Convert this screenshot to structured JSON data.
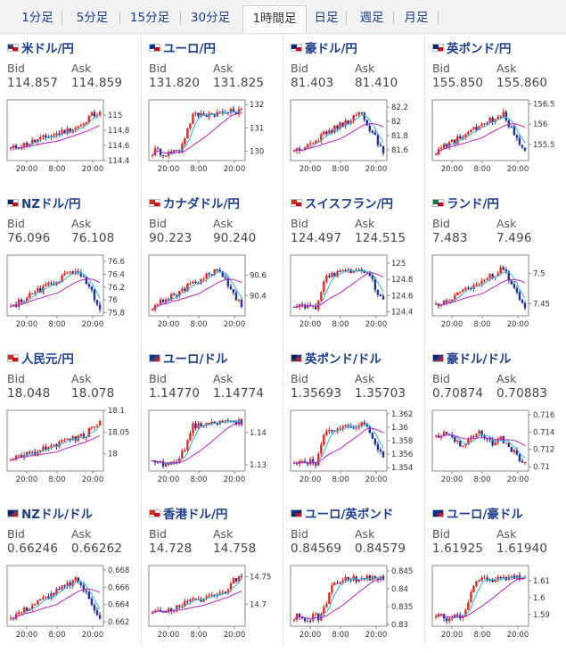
{
  "tabs": [
    {
      "label": "1分足",
      "active": false
    },
    {
      "label": "5分足",
      "active": false
    },
    {
      "label": "15分足",
      "active": false
    },
    {
      "label": "30分足",
      "active": false
    },
    {
      "label": "1時間足",
      "active": true
    },
    {
      "label": "日足",
      "active": false
    },
    {
      "label": "週足",
      "active": false
    },
    {
      "label": "月足",
      "active": false
    }
  ],
  "labels": {
    "bid": "Bid",
    "ask": "Ask"
  },
  "colors": {
    "up": "#e8261e",
    "down": "#1e2e9c",
    "ma_short": "#2bb8d6",
    "ma_long": "#c320c3",
    "link": "#1a3d8f"
  },
  "x_ticks": [
    "20:00",
    "8:00",
    "20:00"
  ],
  "cards": [
    {
      "name": "米ドル/円",
      "flag": "us-jp",
      "bid": "114.857",
      "ask": "114.859",
      "ymin": 114.4,
      "ymax": 115.2,
      "ticks": [
        "115",
        "114.8",
        "114.6",
        "114.4"
      ],
      "tickv": [
        115,
        114.8,
        114.6,
        114.4
      ],
      "trend": "up-late"
    },
    {
      "name": "ユーロ/円",
      "flag": "eu-jp",
      "bid": "131.820",
      "ask": "131.825",
      "ymin": 129.6,
      "ymax": 132.2,
      "ticks": [
        "132",
        "131",
        "130"
      ],
      "tickv": [
        132,
        131,
        130
      ],
      "trend": "jump"
    },
    {
      "name": "豪ドル/円",
      "flag": "au-jp",
      "bid": "81.403",
      "ask": "81.410",
      "ymin": 81.45,
      "ymax": 82.3,
      "ticks": [
        "82.2",
        "82",
        "81.8",
        "81.6"
      ],
      "tickv": [
        82.2,
        82,
        81.8,
        81.6
      ],
      "trend": "up-drop"
    },
    {
      "name": "英ポンド/円",
      "flag": "gb-jp",
      "bid": "155.850",
      "ask": "155.860",
      "ymin": 155.1,
      "ymax": 156.6,
      "ticks": [
        "156.5",
        "156",
        "155.5"
      ],
      "tickv": [
        156.5,
        156,
        155.5
      ],
      "trend": "up-drop"
    },
    {
      "name": "NZドル/円",
      "flag": "nz-jp",
      "bid": "76.096",
      "ask": "76.108",
      "ymin": 75.75,
      "ymax": 76.7,
      "ticks": [
        "76.6",
        "76.4",
        "76.2",
        "76",
        "75.8"
      ],
      "tickv": [
        76.6,
        76.4,
        76.2,
        76,
        75.8
      ],
      "trend": "up-drop"
    },
    {
      "name": "カナダドル/円",
      "flag": "ca-jp",
      "bid": "90.223",
      "ask": "90.240",
      "ymin": 90.2,
      "ymax": 90.8,
      "ticks": [
        "90.6",
        "90.4"
      ],
      "tickv": [
        90.6,
        90.4
      ],
      "trend": "up-drop"
    },
    {
      "name": "スイスフラン/円",
      "flag": "ch-jp",
      "bid": "124.497",
      "ask": "124.515",
      "ymin": 124.35,
      "ymax": 125.1,
      "ticks": [
        "125",
        "124.8",
        "124.6",
        "124.4"
      ],
      "tickv": [
        125,
        124.8,
        124.6,
        124.4
      ],
      "trend": "jump-drop"
    },
    {
      "name": "ランド/円",
      "flag": "za-jp",
      "bid": "7.483",
      "ask": "7.496",
      "ymin": 7.43,
      "ymax": 7.53,
      "ticks": [
        "7.5",
        "7.45"
      ],
      "tickv": [
        7.5,
        7.45
      ],
      "trend": "up-drop"
    },
    {
      "name": "人民元/円",
      "flag": "cn-jp",
      "bid": "18.048",
      "ask": "18.078",
      "ymin": 17.96,
      "ymax": 18.1,
      "ticks": [
        "18.1",
        "18.05",
        "18"
      ],
      "tickv": [
        18.1,
        18.05,
        18
      ],
      "trend": "up-late"
    },
    {
      "name": "ユーロ/ドル",
      "flag": "eu-us",
      "bid": "1.14770",
      "ask": "1.14774",
      "ymin": 1.128,
      "ymax": 1.147,
      "ticks": [
        "1.14",
        "1.13"
      ],
      "tickv": [
        1.14,
        1.13
      ],
      "trend": "jump"
    },
    {
      "name": "英ポンド/ドル",
      "flag": "gb-us",
      "bid": "1.35693",
      "ask": "1.35703",
      "ymin": 1.3535,
      "ymax": 1.3625,
      "ticks": [
        "1.362",
        "1.36",
        "1.358",
        "1.356",
        "1.354"
      ],
      "tickv": [
        1.362,
        1.36,
        1.358,
        1.356,
        1.354
      ],
      "trend": "jump-drop"
    },
    {
      "name": "豪ドル/ドル",
      "flag": "au-us",
      "bid": "0.70874",
      "ask": "0.70883",
      "ymin": 0.7095,
      "ymax": 0.7165,
      "ticks": [
        "0.716",
        "0.714",
        "0.712",
        "0.71"
      ],
      "tickv": [
        0.716,
        0.714,
        0.712,
        0.71
      ],
      "trend": "flat-drop"
    },
    {
      "name": "NZドル/ドル",
      "flag": "nz-us",
      "bid": "0.66246",
      "ask": "0.66262",
      "ymin": 0.6615,
      "ymax": 0.6685,
      "ticks": [
        "0.668",
        "0.666",
        "0.664",
        "0.662"
      ],
      "tickv": [
        0.668,
        0.666,
        0.664,
        0.662
      ],
      "trend": "up-drop"
    },
    {
      "name": "香港ドル/円",
      "flag": "hk-jp",
      "bid": "14.728",
      "ask": "14.758",
      "ymin": 14.66,
      "ymax": 14.77,
      "ticks": [
        "14.75",
        "14.7"
      ],
      "tickv": [
        14.75,
        14.7
      ],
      "trend": "up-late"
    },
    {
      "name": "ユーロ/英ポンド",
      "flag": "eu-gb",
      "bid": "0.84569",
      "ask": "0.84579",
      "ymin": 0.8295,
      "ymax": 0.8465,
      "ticks": [
        "0.845",
        "0.84",
        "0.835",
        "0.83"
      ],
      "tickv": [
        0.845,
        0.84,
        0.835,
        0.83
      ],
      "trend": "jump"
    },
    {
      "name": "ユーロ/豪ドル",
      "flag": "eu-au",
      "bid": "1.61925",
      "ask": "1.61940",
      "ymin": 1.583,
      "ymax": 1.619,
      "ticks": [
        "1.61",
        "1.6",
        "1.59"
      ],
      "tickv": [
        1.61,
        1.6,
        1.59
      ],
      "trend": "jump"
    }
  ]
}
